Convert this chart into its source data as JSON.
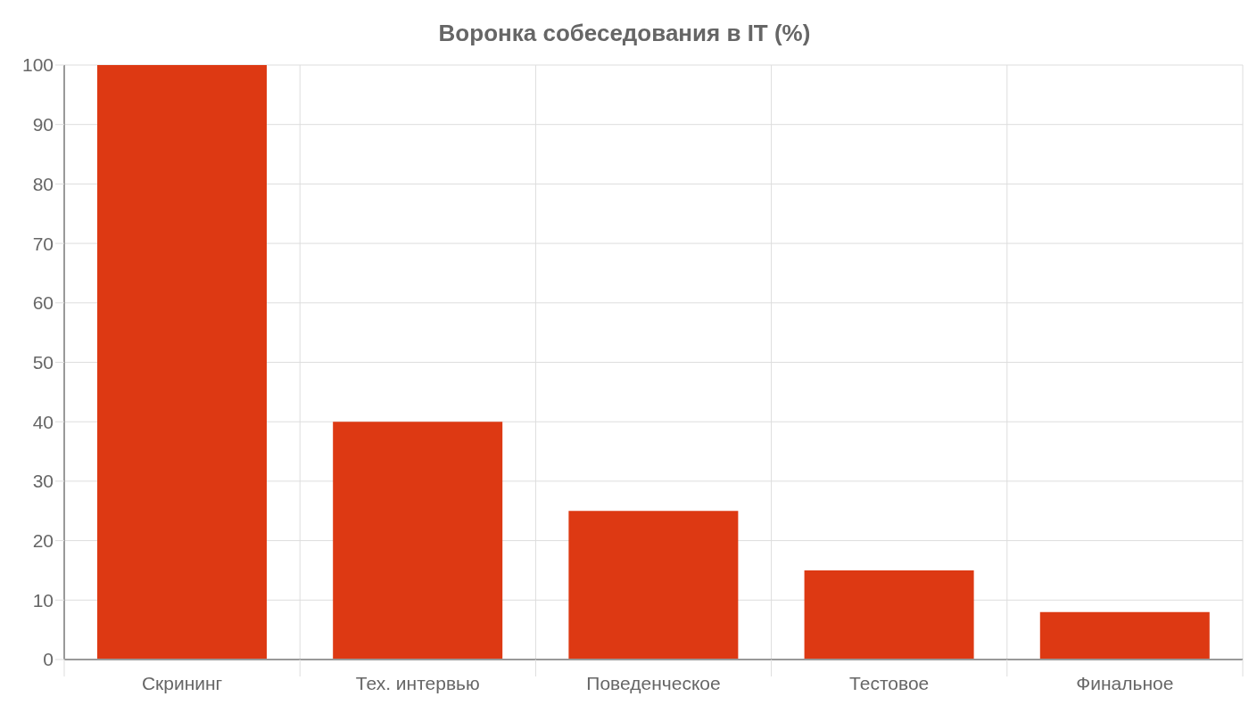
{
  "chart_data": {
    "type": "bar",
    "title": "Воронка собеседования в IT (%)",
    "categories": [
      "Скрининг",
      "Тех. интервью",
      "Поведенческое",
      "Тестовое",
      "Финальное"
    ],
    "values": [
      100,
      40,
      25,
      15,
      8
    ],
    "color": "#dd3913",
    "ylim": [
      0,
      100
    ],
    "yticks": [
      0,
      10,
      20,
      30,
      40,
      50,
      60,
      70,
      80,
      90,
      100
    ],
    "grid": true
  }
}
